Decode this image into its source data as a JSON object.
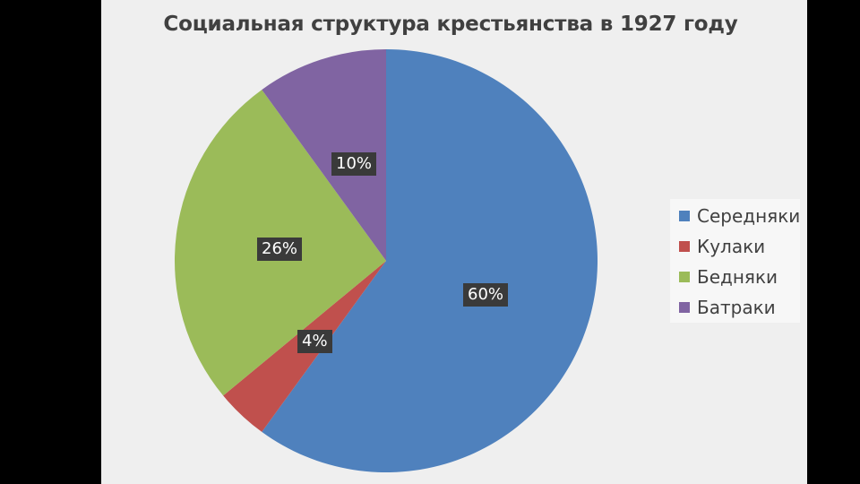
{
  "chart_data": {
    "type": "pie",
    "title": "Социальная структура крестьянства в 1927 году",
    "categories": [
      "Середняки",
      "Кулаки",
      "Бедняки",
      "Батраки"
    ],
    "values": [
      60,
      4,
      26,
      10
    ],
    "data_labels": [
      "60%",
      "4%",
      "26%",
      "10%"
    ],
    "colors": [
      "#4f81bd",
      "#c0504d",
      "#9bbb59",
      "#8064a2"
    ],
    "legend_position": "right"
  }
}
